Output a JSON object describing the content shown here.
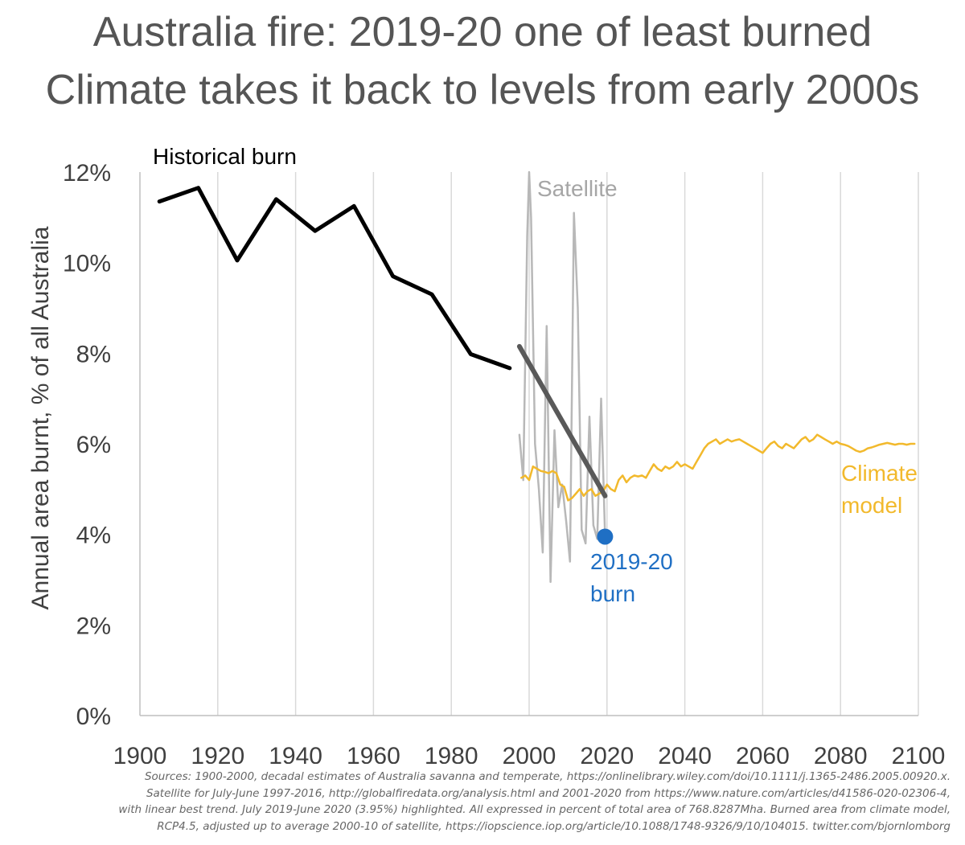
{
  "title_line1": "Australia fire: 2019-20 one of least burned",
  "title_line2": "Climate takes it back to levels from early 2000s",
  "chart_data": {
    "type": "line",
    "ylabel": "Annual area burnt, % of all Australia",
    "xlim": [
      1900,
      2100
    ],
    "ylim": [
      0,
      12
    ],
    "x_ticks": [
      "1900",
      "1920",
      "1940",
      "1960",
      "1980",
      "2000",
      "2020",
      "2040",
      "2060",
      "2080",
      "2100"
    ],
    "y_ticks": [
      "0%",
      "2%",
      "4%",
      "6%",
      "8%",
      "10%",
      "12%"
    ],
    "grid": "vertical",
    "series": [
      {
        "name": "Historical burn",
        "color": "#000000",
        "x": [
          1905,
          1915,
          1925,
          1935,
          1945,
          1955,
          1965,
          1975,
          1985,
          1995
        ],
        "y": [
          11.35,
          11.65,
          10.05,
          11.4,
          10.7,
          11.25,
          9.7,
          9.3,
          7.98,
          7.67
        ]
      },
      {
        "name": "Satellite",
        "color": "#b8b8b8",
        "x": [
          1997.5,
          1998.5,
          1999.5,
          2000,
          2000.5,
          2001.5,
          2002.5,
          2003.5,
          2004.5,
          2005.5,
          2006.5,
          2007.5,
          2008.5,
          2009.5,
          2010.5,
          2011.5,
          2012.5,
          2013.5,
          2014.5,
          2015.5,
          2016.5,
          2017.5,
          2018.5,
          2019.5
        ],
        "y": [
          6.2,
          5.2,
          10.6,
          12.0,
          11.0,
          6.0,
          5.0,
          3.6,
          8.6,
          2.95,
          6.3,
          4.6,
          5.1,
          4.3,
          3.4,
          11.1,
          9.0,
          4.1,
          3.8,
          6.6,
          4.2,
          3.9,
          7.0,
          3.95
        ]
      },
      {
        "name": "Climate model",
        "color": "#f2b92c",
        "x": [
          1998,
          1999,
          2000,
          2001,
          2002,
          2003,
          2004,
          2005,
          2006,
          2007,
          2008,
          2009,
          2010,
          2011,
          2012,
          2013,
          2014,
          2015,
          2016,
          2017,
          2018,
          2019,
          2020,
          2021,
          2022,
          2023,
          2024,
          2025,
          2026,
          2027,
          2028,
          2029,
          2030,
          2031,
          2032,
          2033,
          2034,
          2035,
          2036,
          2037,
          2038,
          2039,
          2040,
          2041,
          2042,
          2043,
          2044,
          2045,
          2046,
          2047,
          2048,
          2049,
          2050,
          2051,
          2052,
          2053,
          2054,
          2055,
          2056,
          2057,
          2058,
          2059,
          2060,
          2061,
          2062,
          2063,
          2064,
          2065,
          2066,
          2067,
          2068,
          2069,
          2070,
          2071,
          2072,
          2073,
          2074,
          2075,
          2076,
          2077,
          2078,
          2079,
          2080,
          2081,
          2082,
          2083,
          2084,
          2085,
          2086,
          2087,
          2088,
          2089,
          2090,
          2091,
          2092,
          2093,
          2094,
          2095,
          2096,
          2097,
          2098,
          2099
        ],
        "y": [
          5.25,
          5.3,
          5.2,
          5.5,
          5.45,
          5.4,
          5.38,
          5.35,
          5.4,
          5.35,
          5.1,
          5.05,
          4.75,
          4.8,
          4.9,
          5.0,
          4.85,
          4.95,
          5.0,
          4.85,
          4.9,
          4.95,
          5.1,
          5.0,
          4.95,
          5.2,
          5.3,
          5.15,
          5.25,
          5.3,
          5.28,
          5.3,
          5.25,
          5.4,
          5.55,
          5.45,
          5.4,
          5.5,
          5.45,
          5.5,
          5.6,
          5.5,
          5.55,
          5.5,
          5.45,
          5.6,
          5.75,
          5.9,
          6.0,
          6.05,
          6.1,
          6.0,
          6.05,
          6.1,
          6.05,
          6.08,
          6.1,
          6.05,
          6.0,
          5.95,
          5.9,
          5.85,
          5.8,
          5.9,
          6.0,
          6.05,
          5.95,
          5.9,
          6.0,
          5.95,
          5.9,
          6.0,
          6.1,
          6.15,
          6.05,
          6.1,
          6.2,
          6.15,
          6.1,
          6.05,
          6.0,
          6.05,
          6.0,
          5.98,
          5.95,
          5.9,
          5.85,
          5.82,
          5.85,
          5.9,
          5.92,
          5.95,
          5.98,
          6.0,
          6.02,
          6.0,
          5.98,
          6.0,
          6.0,
          5.98,
          6.0,
          6.0
        ]
      },
      {
        "name": "trend",
        "color": "#595959",
        "x": [
          1997.5,
          2019.5
        ],
        "y": [
          8.15,
          4.85
        ]
      }
    ],
    "highlight": {
      "x": 2019.5,
      "y": 3.95,
      "color": "#1f6fc4"
    },
    "annotations": [
      {
        "text": "Historical burn",
        "color": "#000000"
      },
      {
        "text": "Satellite",
        "color": "#a6a6a6"
      },
      {
        "text": "Climate",
        "color": "#f2b92c"
      },
      {
        "text": "model",
        "color": "#f2b92c"
      },
      {
        "text": "2019-20",
        "color": "#1f6fc4"
      },
      {
        "text": "burn",
        "color": "#1f6fc4"
      }
    ]
  },
  "sources": [
    "Sources: 1900-2000, decadal estimates of Australia savanna and temperate, https://onlinelibrary.wiley.com/doi/10.1111/j.1365-2486.2005.00920.x.",
    "Satellite for July-June 1997-2016, http://globalfiredata.org/analysis.html and 2001-2020 from https://www.nature.com/articles/d41586-020-02306-4,",
    "with linear best trend. July 2019-June 2020 (3.95%) highlighted. All expressed in percent of total area of 768.8287Mha. Burned area from climate model,",
    "RCP4.5, adjusted up to average 2000-10 of satellite, https://iopscience.iop.org/article/10.1088/1748-9326/9/10/104015. twitter.com/bjornlomborg"
  ]
}
